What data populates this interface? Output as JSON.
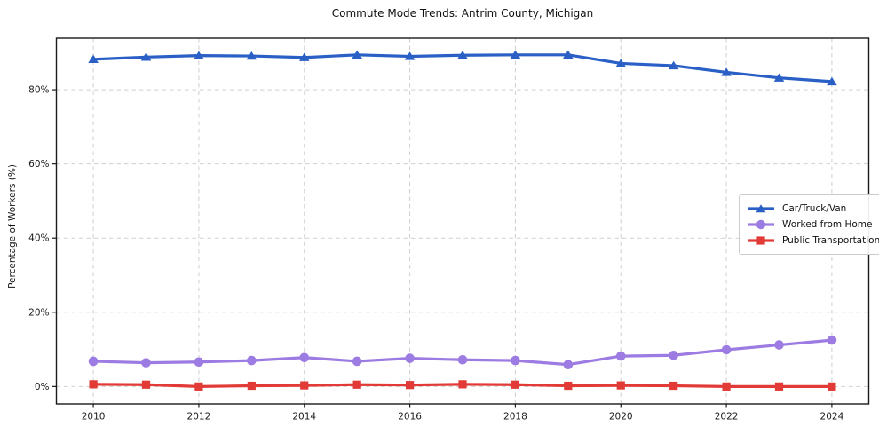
{
  "chart_data": {
    "type": "line",
    "title": "Commute Mode Trends: Antrim County, Michigan",
    "xlabel": "",
    "ylabel": "Percentage of Workers (%)",
    "x": [
      2010,
      2011,
      2012,
      2013,
      2014,
      2015,
      2016,
      2017,
      2018,
      2019,
      2020,
      2021,
      2022,
      2023,
      2024
    ],
    "series": [
      {
        "name": "Car/Truck/Van",
        "color": "#2a5fc6",
        "marker": "triangle",
        "values": [
          88.2,
          88.8,
          89.2,
          89.1,
          88.7,
          89.4,
          89.0,
          89.3,
          89.4,
          89.4,
          87.1,
          86.5,
          84.7,
          83.2,
          82.2
        ]
      },
      {
        "name": "Worked from Home",
        "color": "#9c7be2",
        "marker": "circle",
        "values": [
          6.8,
          6.4,
          6.6,
          7.0,
          7.8,
          6.8,
          7.6,
          7.2,
          7.0,
          5.9,
          8.2,
          8.4,
          9.9,
          11.2,
          12.5
        ]
      },
      {
        "name": "Public Transportation",
        "color": "#e23a36",
        "marker": "square",
        "values": [
          0.6,
          0.5,
          0.0,
          0.2,
          0.3,
          0.5,
          0.4,
          0.6,
          0.5,
          0.2,
          0.3,
          0.2,
          0.0,
          0.0,
          0.0
        ]
      }
    ],
    "xlim": [
      2009.3,
      2024.7
    ],
    "ylim": [
      -4.7,
      93.9
    ],
    "xticks": [
      2010,
      2012,
      2014,
      2016,
      2018,
      2020,
      2022,
      2024
    ],
    "yticks": [
      0,
      20,
      40,
      60,
      80
    ],
    "ytick_suffix": "%",
    "grid": true,
    "legend_position": "right-middle",
    "axis_color": "#1a1a1a",
    "grid_color": "#cfcfcf",
    "background": "#ffffff"
  }
}
